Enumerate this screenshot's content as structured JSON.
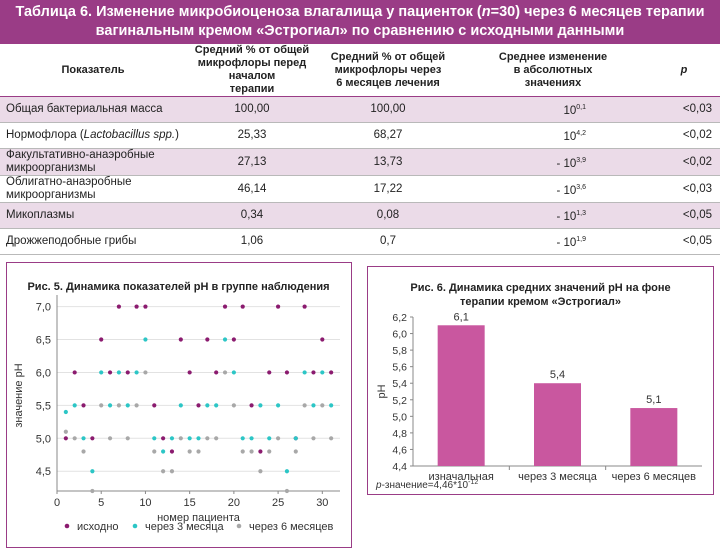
{
  "table": {
    "title_parts": [
      "Таблица 6. Изменение микробиоценоза влагалища у пациенток (",
      "n",
      "=30) через 6 месяцев терапии"
    ],
    "title_line2": "вагинальным кремом «Эстрогиал» по сравнению с исходными данными",
    "headers": {
      "indicator": "Показатель",
      "before": [
        "Средний % от общей",
        "микрофлоры перед началом",
        "терапии"
      ],
      "after": [
        "Средний % от общей",
        "микрофлоры через",
        "6 месяцев лечения"
      ],
      "change": [
        "Среднее изменение",
        "в абсолютных",
        "значениях"
      ],
      "p": "p"
    },
    "rows": [
      {
        "name": "Общая бактериальная масса",
        "name_italic": "",
        "name_after": "",
        "before": "100,00",
        "after": "100,00",
        "change_base": "10",
        "change_exp": "0,1",
        "change_sign": "",
        "p": "<0,03"
      },
      {
        "name": "Нормофлора (",
        "name_italic": "Lactobacillus spp.",
        "name_after": ")",
        "before": "25,33",
        "after": "68,27",
        "change_base": "10",
        "change_exp": "4,2",
        "change_sign": "",
        "p": "<0,02"
      },
      {
        "name": "Факультативно-анаэробные микроорганизмы",
        "name_italic": "",
        "name_after": "",
        "before": "27,13",
        "after": "13,73",
        "change_base": "10",
        "change_exp": "3,9",
        "change_sign": "- ",
        "p": "<0,02"
      },
      {
        "name": "Облигатно-анаэробные микроорганизмы",
        "name_italic": "",
        "name_after": "",
        "before": "46,14",
        "after": "17,22",
        "change_base": "10",
        "change_exp": "3,6",
        "change_sign": "- ",
        "p": "<0,03"
      },
      {
        "name": "Микоплазмы",
        "name_italic": "",
        "name_after": "",
        "before": "0,34",
        "after": "0,08",
        "change_base": "10",
        "change_exp": "1,3",
        "change_sign": "- ",
        "p": "<0,05"
      },
      {
        "name": "Дрожжеподобные грибы",
        "name_italic": "",
        "name_after": "",
        "before": "1,06",
        "after": "0,7",
        "change_base": "10",
        "change_exp": "1,9",
        "change_sign": "- ",
        "p": "<0,05"
      }
    ]
  },
  "chart_data": [
    {
      "type": "scatter",
      "title": "Рис. 5. Динамика показателей рН в группе наблюдения",
      "xlabel": "номер пациента",
      "ylabel": "значение рН",
      "xlim": [
        0,
        32
      ],
      "ylim": [
        4.2,
        7.1
      ],
      "xticks": [
        0,
        5,
        10,
        15,
        20,
        25,
        30
      ],
      "xtick_labels": [
        "0",
        "5",
        "10",
        "15",
        "20",
        "25",
        "30"
      ],
      "yticks": [
        4.5,
        5.0,
        5.5,
        6.0,
        6.5,
        7.0
      ],
      "ytick_labels": [
        "4,5",
        "5,0",
        "5,5",
        "6,0",
        "6,5",
        "7,0"
      ],
      "grid": "horizontal",
      "legend_position": "bottom",
      "series": [
        {
          "name": "исходно",
          "color": "#8b1b6f",
          "points": [
            [
              1,
              5.0
            ],
            [
              2,
              6.0
            ],
            [
              3,
              5.5
            ],
            [
              4,
              5.0
            ],
            [
              5,
              6.5
            ],
            [
              6,
              6.0
            ],
            [
              7,
              7.0
            ],
            [
              8,
              6.0
            ],
            [
              9,
              7.0
            ],
            [
              10,
              7.0
            ],
            [
              11,
              5.5
            ],
            [
              12,
              5.0
            ],
            [
              13,
              4.8
            ],
            [
              14,
              6.5
            ],
            [
              15,
              6.0
            ],
            [
              16,
              5.5
            ],
            [
              17,
              6.5
            ],
            [
              18,
              6.0
            ],
            [
              19,
              7.0
            ],
            [
              20,
              6.5
            ],
            [
              21,
              7.0
            ],
            [
              22,
              5.5
            ],
            [
              23,
              4.8
            ],
            [
              24,
              6.0
            ],
            [
              25,
              7.0
            ],
            [
              26,
              6.0
            ],
            [
              27,
              5.0
            ],
            [
              28,
              7.0
            ],
            [
              29,
              6.0
            ],
            [
              30,
              6.5
            ],
            [
              31,
              6.0
            ]
          ]
        },
        {
          "name": "через 3 месяца",
          "color": "#2cc6c6",
          "points": [
            [
              1,
              5.4
            ],
            [
              2,
              5.5
            ],
            [
              3,
              5.0
            ],
            [
              4,
              4.5
            ],
            [
              5,
              6.0
            ],
            [
              6,
              5.5
            ],
            [
              7,
              6.0
            ],
            [
              8,
              5.5
            ],
            [
              9,
              6.0
            ],
            [
              10,
              6.5
            ],
            [
              11,
              5.0
            ],
            [
              12,
              4.8
            ],
            [
              13,
              5.0
            ],
            [
              14,
              5.5
            ],
            [
              15,
              5.0
            ],
            [
              16,
              5.0
            ],
            [
              17,
              5.5
            ],
            [
              18,
              5.5
            ],
            [
              19,
              6.5
            ],
            [
              20,
              6.0
            ],
            [
              21,
              5.0
            ],
            [
              22,
              5.0
            ],
            [
              23,
              5.5
            ],
            [
              24,
              5.0
            ],
            [
              25,
              5.5
            ],
            [
              26,
              4.5
            ],
            [
              27,
              5.0
            ],
            [
              28,
              6.0
            ],
            [
              29,
              5.5
            ],
            [
              30,
              6.0
            ],
            [
              31,
              5.5
            ]
          ]
        },
        {
          "name": "через 6 месяцев",
          "color": "#a8a8a8",
          "points": [
            [
              1,
              5.1
            ],
            [
              2,
              5.0
            ],
            [
              3,
              4.8
            ],
            [
              4,
              4.2
            ],
            [
              5,
              5.5
            ],
            [
              6,
              5.0
            ],
            [
              7,
              5.5
            ],
            [
              8,
              5.0
            ],
            [
              9,
              5.5
            ],
            [
              10,
              6.0
            ],
            [
              11,
              4.8
            ],
            [
              12,
              4.5
            ],
            [
              13,
              4.5
            ],
            [
              14,
              5.0
            ],
            [
              15,
              4.8
            ],
            [
              16,
              4.8
            ],
            [
              17,
              5.0
            ],
            [
              18,
              5.0
            ],
            [
              19,
              6.0
            ],
            [
              20,
              5.5
            ],
            [
              21,
              4.8
            ],
            [
              22,
              4.8
            ],
            [
              23,
              4.5
            ],
            [
              24,
              4.8
            ],
            [
              25,
              5.0
            ],
            [
              26,
              4.2
            ],
            [
              27,
              4.8
            ],
            [
              28,
              5.5
            ],
            [
              29,
              5.0
            ],
            [
              30,
              5.5
            ],
            [
              31,
              5.0
            ]
          ]
        }
      ]
    },
    {
      "type": "bar",
      "title": "Рис. 6. Динамика средних значений рН на фоне терапии кремом «Эстрогиал»",
      "ylabel": "рН",
      "categories": [
        "изначальная",
        "через 3 месяца",
        "через 6 месяцев"
      ],
      "values": [
        6.1,
        5.4,
        5.1
      ],
      "value_labels": [
        "6,1",
        "5,4",
        "5,1"
      ],
      "ylim": [
        4.4,
        6.2
      ],
      "yticks": [
        4.4,
        4.6,
        4.8,
        5.0,
        5.2,
        5.4,
        5.6,
        5.8,
        6.0,
        6.2
      ],
      "ytick_labels": [
        "4,4",
        "4,6",
        "4,8",
        "5,0",
        "5,2",
        "5,4",
        "5,6",
        "5,8",
        "6,0",
        "6,2"
      ],
      "bar_color": "#c9579f",
      "note_italic": "p",
      "note_text": "-значение=4,46*10",
      "note_exp": "-12"
    }
  ]
}
